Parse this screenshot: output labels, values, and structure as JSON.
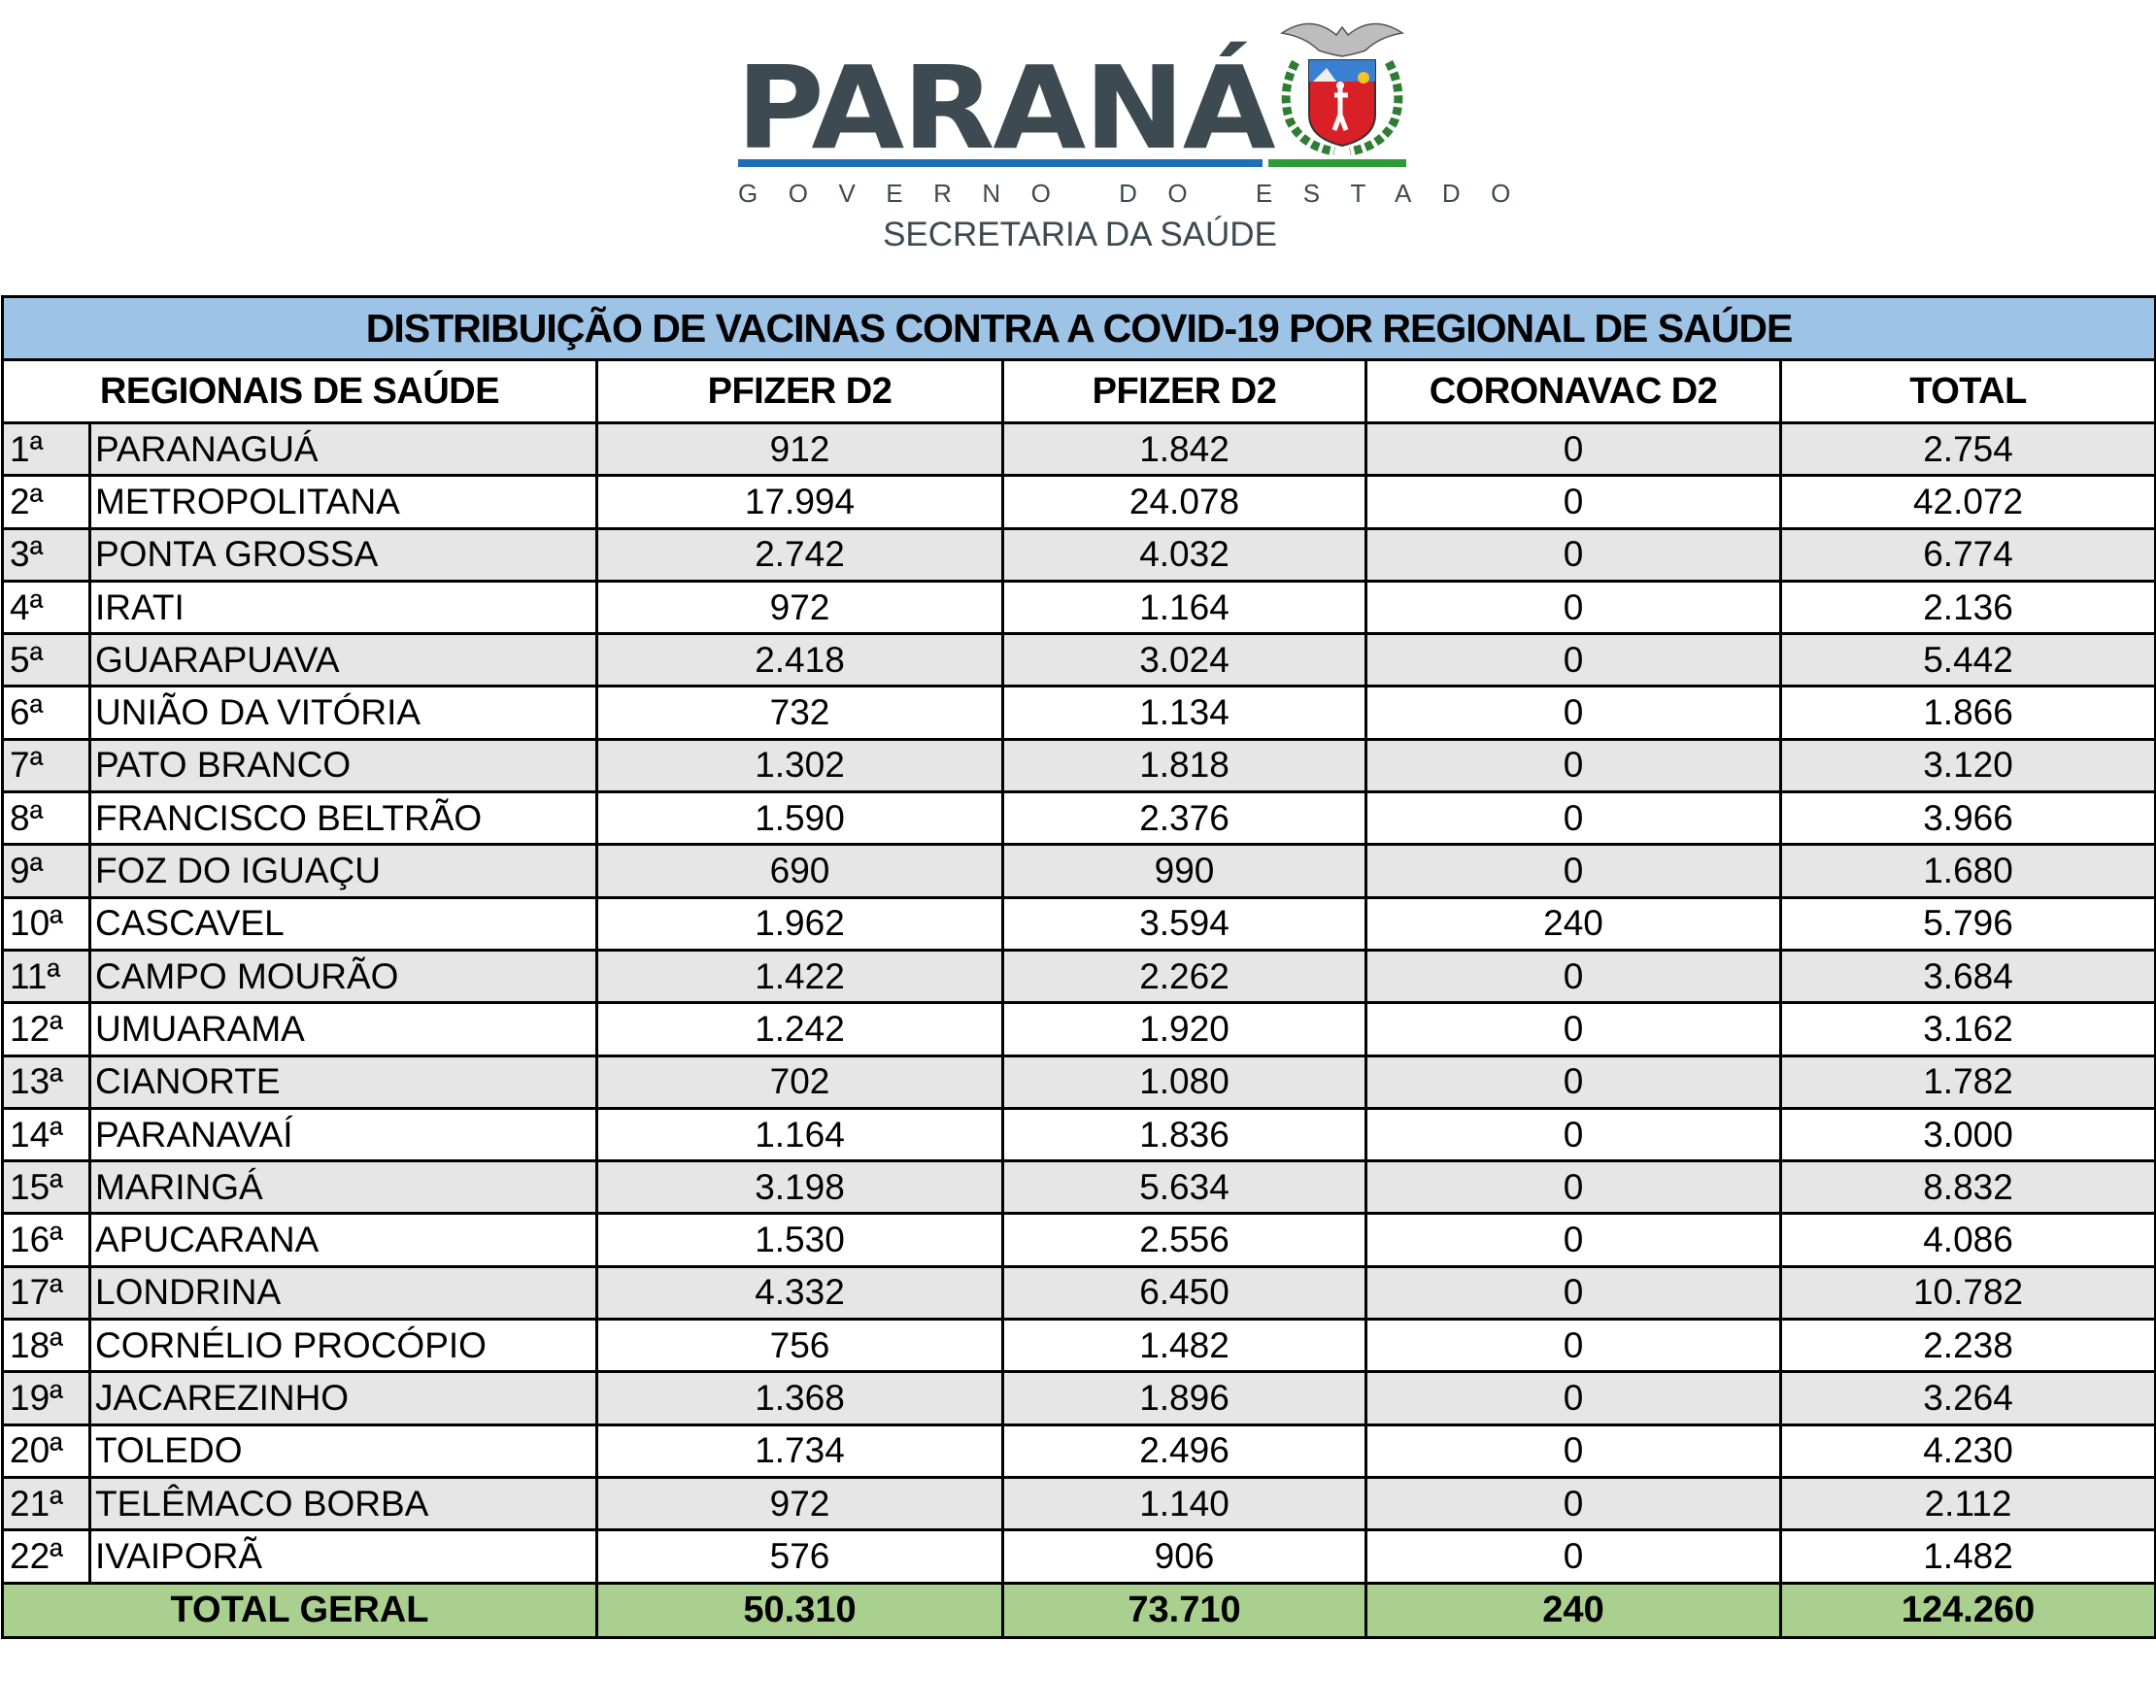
{
  "header": {
    "wordmark": "PARANÁ",
    "subtitle": "GOVERNO DO ESTADO",
    "department": "SECRETARIA DA SAÚDE",
    "colors": {
      "wordmark": "#3d4a52",
      "blue_bar": "#1f6fb7",
      "green_bar": "#2e9b3a"
    }
  },
  "table": {
    "title": "DISTRIBUIÇÃO DE VACINAS CONTRA A COVID-19 POR REGIONAL DE SAÚDE",
    "columns": [
      "REGIONAIS DE SAÚDE",
      "PFIZER D2",
      "PFIZER D2",
      "CORONAVAC D2",
      "TOTAL"
    ],
    "rows": [
      {
        "ord": "1ª",
        "name": "PARANAGUÁ",
        "pfizer_a": "912",
        "pfizer_b": "1.842",
        "coronavac": "0",
        "total": "2.754"
      },
      {
        "ord": "2ª",
        "name": "METROPOLITANA",
        "pfizer_a": "17.994",
        "pfizer_b": "24.078",
        "coronavac": "0",
        "total": "42.072"
      },
      {
        "ord": "3ª",
        "name": "PONTA GROSSA",
        "pfizer_a": "2.742",
        "pfizer_b": "4.032",
        "coronavac": "0",
        "total": "6.774"
      },
      {
        "ord": "4ª",
        "name": "IRATI",
        "pfizer_a": "972",
        "pfizer_b": "1.164",
        "coronavac": "0",
        "total": "2.136"
      },
      {
        "ord": "5ª",
        "name": "GUARAPUAVA",
        "pfizer_a": "2.418",
        "pfizer_b": "3.024",
        "coronavac": "0",
        "total": "5.442"
      },
      {
        "ord": "6ª",
        "name": "UNIÃO DA VITÓRIA",
        "pfizer_a": "732",
        "pfizer_b": "1.134",
        "coronavac": "0",
        "total": "1.866"
      },
      {
        "ord": "7ª",
        "name": "PATO BRANCO",
        "pfizer_a": "1.302",
        "pfizer_b": "1.818",
        "coronavac": "0",
        "total": "3.120"
      },
      {
        "ord": "8ª",
        "name": "FRANCISCO BELTRÃO",
        "pfizer_a": "1.590",
        "pfizer_b": "2.376",
        "coronavac": "0",
        "total": "3.966"
      },
      {
        "ord": "9ª",
        "name": "FOZ DO IGUAÇU",
        "pfizer_a": "690",
        "pfizer_b": "990",
        "coronavac": "0",
        "total": "1.680"
      },
      {
        "ord": "10ª",
        "name": "CASCAVEL",
        "pfizer_a": "1.962",
        "pfizer_b": "3.594",
        "coronavac": "240",
        "total": "5.796"
      },
      {
        "ord": "11ª",
        "name": "CAMPO MOURÃO",
        "pfizer_a": "1.422",
        "pfizer_b": "2.262",
        "coronavac": "0",
        "total": "3.684"
      },
      {
        "ord": "12ª",
        "name": "UMUARAMA",
        "pfizer_a": "1.242",
        "pfizer_b": "1.920",
        "coronavac": "0",
        "total": "3.162"
      },
      {
        "ord": "13ª",
        "name": "CIANORTE",
        "pfizer_a": "702",
        "pfizer_b": "1.080",
        "coronavac": "0",
        "total": "1.782"
      },
      {
        "ord": "14ª",
        "name": "PARANAVAÍ",
        "pfizer_a": "1.164",
        "pfizer_b": "1.836",
        "coronavac": "0",
        "total": "3.000"
      },
      {
        "ord": "15ª",
        "name": "MARINGÁ",
        "pfizer_a": "3.198",
        "pfizer_b": "5.634",
        "coronavac": "0",
        "total": "8.832"
      },
      {
        "ord": "16ª",
        "name": "APUCARANA",
        "pfizer_a": "1.530",
        "pfizer_b": "2.556",
        "coronavac": "0",
        "total": "4.086"
      },
      {
        "ord": "17ª",
        "name": "LONDRINA",
        "pfizer_a": "4.332",
        "pfizer_b": "6.450",
        "coronavac": "0",
        "total": "10.782"
      },
      {
        "ord": "18ª",
        "name": "CORNÉLIO PROCÓPIO",
        "pfizer_a": "756",
        "pfizer_b": "1.482",
        "coronavac": "0",
        "total": "2.238"
      },
      {
        "ord": "19ª",
        "name": "JACAREZINHO",
        "pfizer_a": "1.368",
        "pfizer_b": "1.896",
        "coronavac": "0",
        "total": "3.264"
      },
      {
        "ord": "20ª",
        "name": "TOLEDO",
        "pfizer_a": "1.734",
        "pfizer_b": "2.496",
        "coronavac": "0",
        "total": "4.230"
      },
      {
        "ord": "21ª",
        "name": "TELÊMACO BORBA",
        "pfizer_a": "972",
        "pfizer_b": "1.140",
        "coronavac": "0",
        "total": "2.112"
      },
      {
        "ord": "22ª",
        "name": "IVAIPORÃ",
        "pfizer_a": "576",
        "pfizer_b": "906",
        "coronavac": "0",
        "total": "1.482"
      }
    ],
    "total": {
      "label": "TOTAL GERAL",
      "pfizer_a": "50.310",
      "pfizer_b": "73.710",
      "coronavac": "240",
      "total": "124.260"
    },
    "colors": {
      "title_bg": "#9dc3e6",
      "alt_row_bg": "#e7e6e6",
      "total_bg": "#a9d08e"
    }
  }
}
